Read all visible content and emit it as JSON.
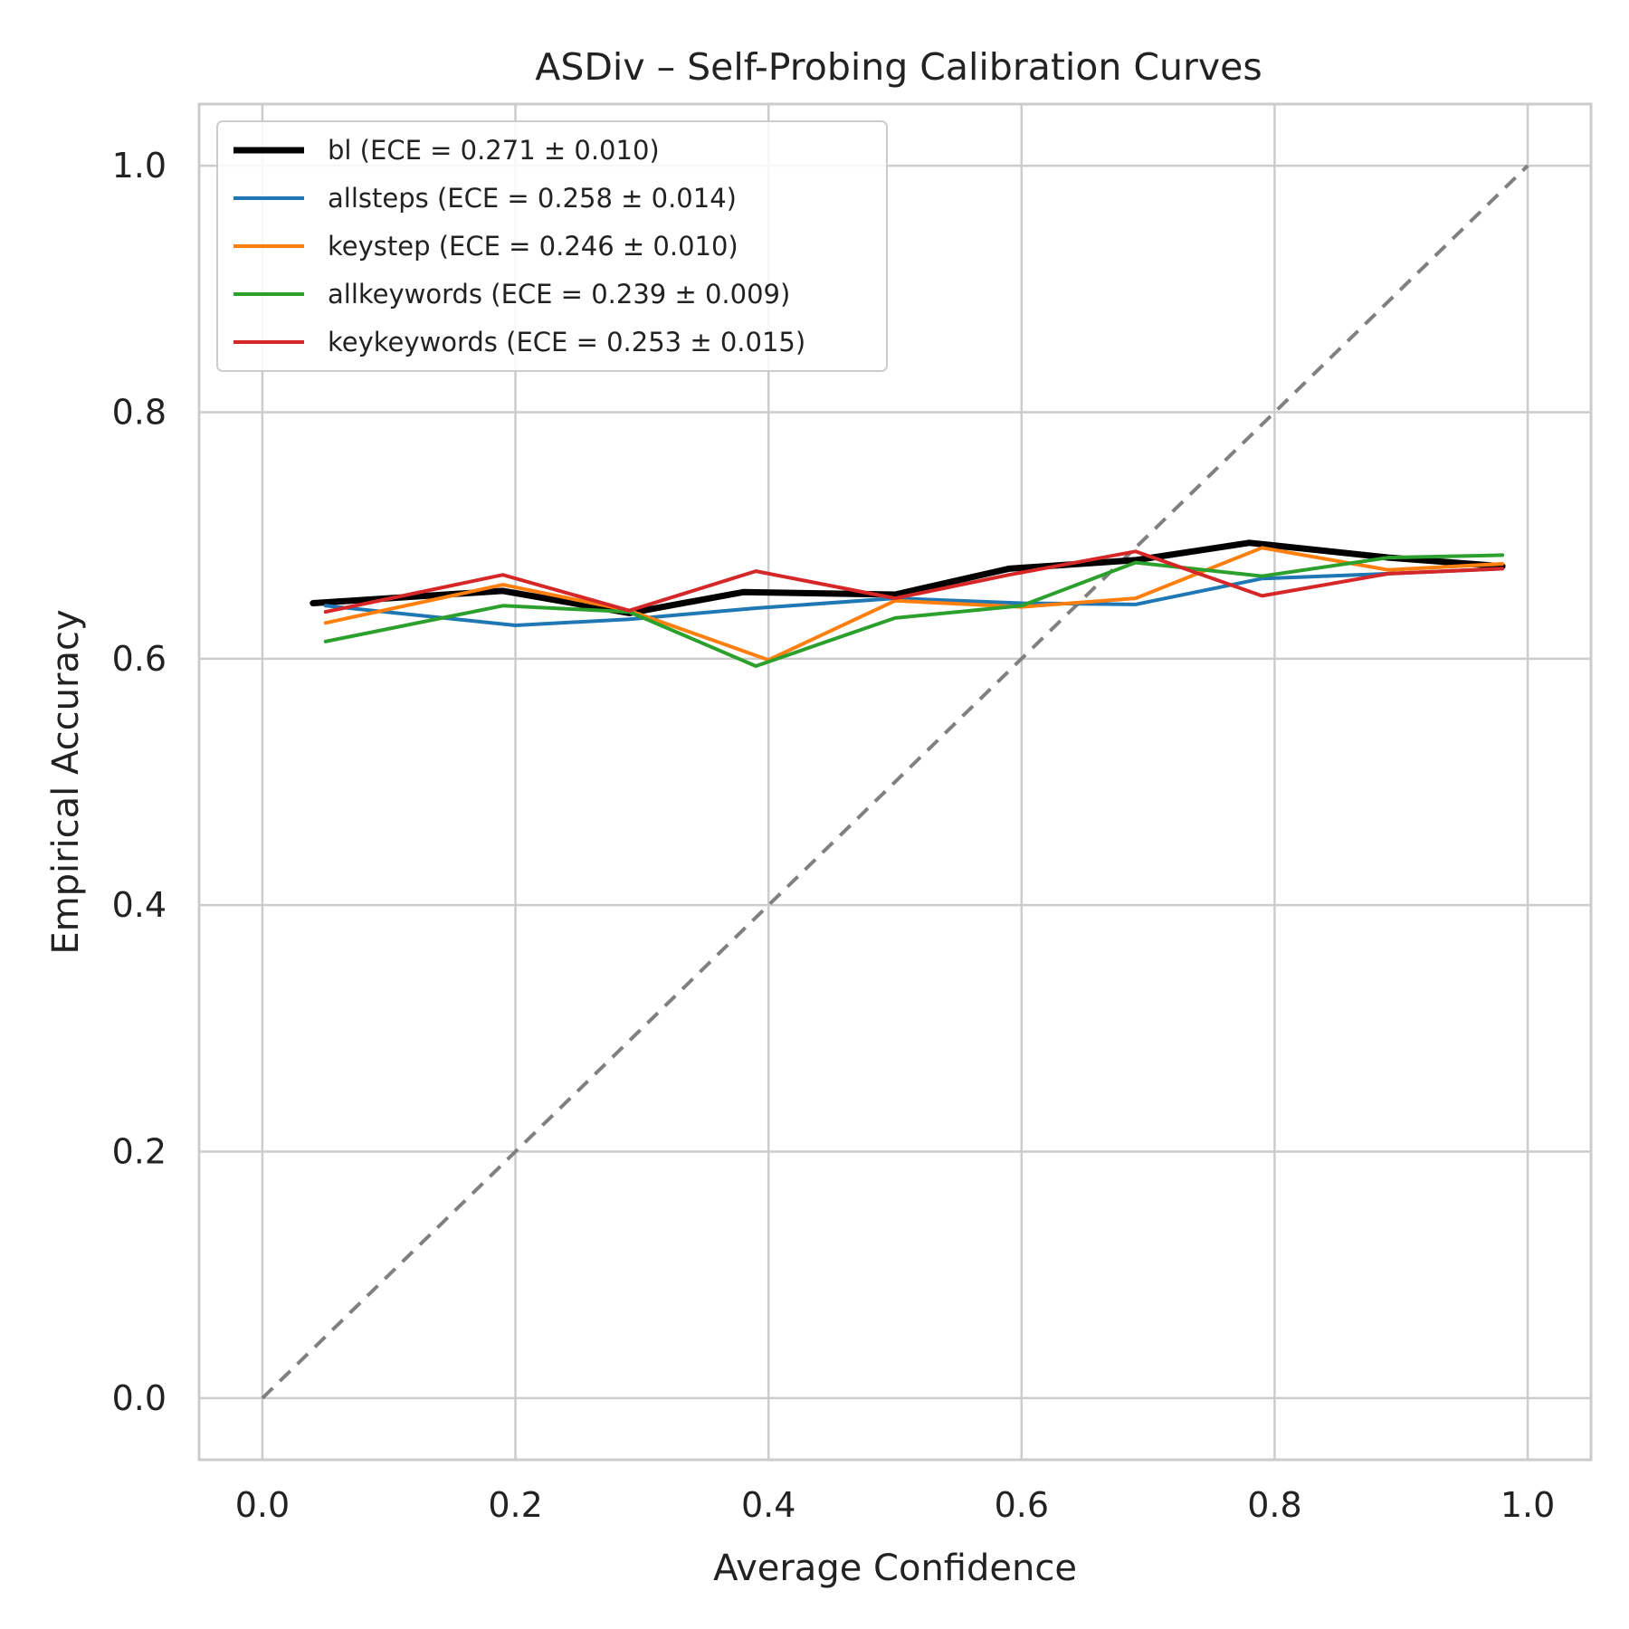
{
  "chart_data": {
    "type": "line",
    "title": "ASDiv – Self-Probing Calibration Curves",
    "xlabel": "Average Confidence",
    "ylabel": "Empirical Accuracy",
    "xlim": [
      -0.05,
      1.05
    ],
    "ylim": [
      -0.05,
      1.05
    ],
    "xticks": [
      "0.0",
      "0.2",
      "0.4",
      "0.6",
      "0.8",
      "1.0"
    ],
    "yticks": [
      "0.0",
      "0.2",
      "0.4",
      "0.6",
      "0.8",
      "1.0"
    ],
    "grid": true,
    "legend_position": "upper-left",
    "reference_line": {
      "style": "dashed",
      "color": "#808080",
      "x": [
        0,
        1
      ],
      "y": [
        0,
        1
      ]
    },
    "series": [
      {
        "name": "bl (ECE = 0.271 ± 0.010)",
        "color": "#000000",
        "bold": true,
        "x": [
          0.04,
          0.19,
          0.29,
          0.38,
          0.5,
          0.59,
          0.69,
          0.78,
          0.89,
          0.98
        ],
        "y": [
          0.645,
          0.655,
          0.637,
          0.654,
          0.652,
          0.673,
          0.68,
          0.694,
          0.682,
          0.675
        ]
      },
      {
        "name": "allsteps (ECE = 0.258 ± 0.014)",
        "color": "#1f77b4",
        "bold": false,
        "x": [
          0.05,
          0.2,
          0.29,
          0.39,
          0.5,
          0.6,
          0.69,
          0.79,
          0.89,
          0.98
        ],
        "y": [
          0.643,
          0.627,
          0.632,
          0.641,
          0.649,
          0.645,
          0.644,
          0.665,
          0.669,
          0.673
        ]
      },
      {
        "name": "keystep (ECE = 0.246 ± 0.010)",
        "color": "#ff7f0e",
        "bold": false,
        "x": [
          0.05,
          0.19,
          0.29,
          0.4,
          0.5,
          0.6,
          0.69,
          0.79,
          0.89,
          0.98
        ],
        "y": [
          0.629,
          0.66,
          0.639,
          0.599,
          0.647,
          0.642,
          0.649,
          0.69,
          0.672,
          0.677
        ]
      },
      {
        "name": "allkeywords (ECE = 0.239 ± 0.009)",
        "color": "#2ca02c",
        "bold": false,
        "x": [
          0.05,
          0.19,
          0.29,
          0.39,
          0.5,
          0.6,
          0.69,
          0.79,
          0.89,
          0.98
        ],
        "y": [
          0.614,
          0.643,
          0.638,
          0.594,
          0.633,
          0.643,
          0.678,
          0.667,
          0.682,
          0.684
        ]
      },
      {
        "name": "keykeywords (ECE = 0.253 ± 0.015)",
        "color": "#d62728",
        "bold": false,
        "x": [
          0.05,
          0.19,
          0.29,
          0.39,
          0.5,
          0.59,
          0.69,
          0.79,
          0.89,
          0.98
        ],
        "y": [
          0.638,
          0.668,
          0.639,
          0.671,
          0.649,
          0.668,
          0.687,
          0.651,
          0.669,
          0.673
        ]
      }
    ]
  }
}
